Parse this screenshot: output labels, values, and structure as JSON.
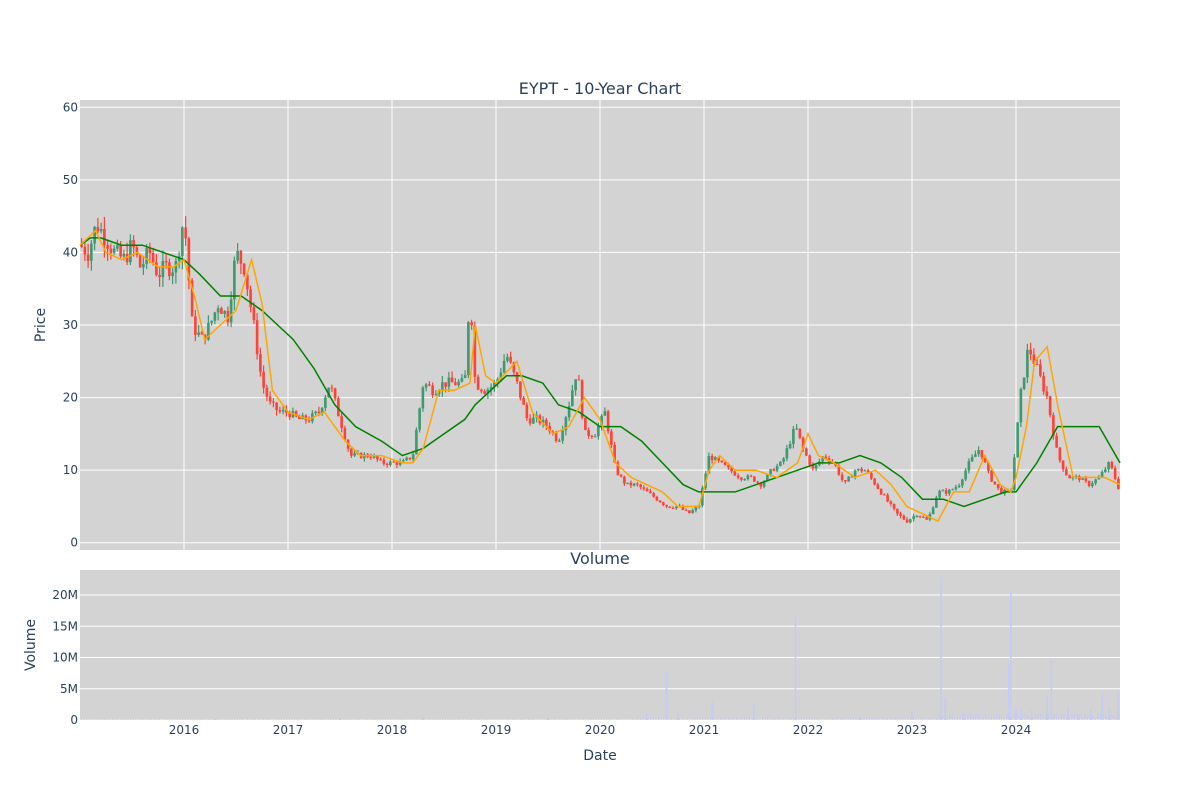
{
  "chart_data": [
    {
      "type": "candlestick",
      "title": "EYPT - 10-Year Chart",
      "ylabel": "Price",
      "xlabel": "",
      "x_range": [
        2015.0,
        2025.0
      ],
      "ylim": [
        -1,
        61
      ],
      "y_ticks": [
        0,
        10,
        20,
        30,
        40,
        50,
        60
      ],
      "grid": true,
      "colors": {
        "plot_bg": "#d3d3d3",
        "increasing": "#3d9970",
        "decreasing": "#ff4136",
        "ma_fast": "#ffa500",
        "ma_slow": "#008000"
      },
      "series": [
        {
          "kind": "close",
          "x": [
            2015.0,
            2015.08,
            2015.16,
            2015.25,
            2015.33,
            2015.42,
            2015.5,
            2015.58,
            2015.67,
            2015.75,
            2015.83,
            2015.92,
            2016.0,
            2016.08,
            2016.17,
            2016.25,
            2016.33,
            2016.42,
            2016.5,
            2016.58,
            2016.67,
            2016.75,
            2016.83,
            2016.92,
            2017.0,
            2017.1,
            2017.2,
            2017.3,
            2017.4,
            2017.5,
            2017.6,
            2017.7,
            2017.8,
            2017.9,
            2018.0,
            2018.1,
            2018.2,
            2018.3,
            2018.4,
            2018.5,
            2018.6,
            2018.7,
            2018.75,
            2018.8,
            2018.9,
            2019.0,
            2019.1,
            2019.2,
            2019.3,
            2019.4,
            2019.5,
            2019.6,
            2019.7,
            2019.78,
            2019.85,
            2019.95,
            2020.05,
            2020.15,
            2020.25,
            2020.35,
            2020.45,
            2020.55,
            2020.65,
            2020.75,
            2020.85,
            2020.95,
            2021.05,
            2021.15,
            2021.25,
            2021.35,
            2021.45,
            2021.55,
            2021.65,
            2021.75,
            2021.88,
            2021.95,
            2022.05,
            2022.15,
            2022.25,
            2022.35,
            2022.45,
            2022.55,
            2022.65,
            2022.75,
            2022.85,
            2022.95,
            2023.05,
            2023.15,
            2023.25,
            2023.35,
            2023.45,
            2023.55,
            2023.65,
            2023.75,
            2023.85,
            2023.95,
            2024.05,
            2024.12,
            2024.2,
            2024.3,
            2024.4,
            2024.5,
            2024.6,
            2024.7,
            2024.8,
            2024.9,
            2025.0
          ],
          "values": [
            41,
            40,
            44,
            42,
            40,
            39,
            41,
            38,
            40,
            37,
            38,
            38,
            45,
            30,
            28,
            30,
            33,
            31,
            40,
            38,
            30,
            22,
            19,
            18,
            18,
            17,
            17,
            18,
            22,
            17,
            12,
            12,
            12,
            11,
            11,
            11,
            12,
            22,
            21,
            22,
            22,
            22,
            35,
            22,
            21,
            22,
            26,
            22,
            17,
            17,
            16,
            14,
            19,
            24,
            15,
            15,
            18,
            10,
            8,
            8,
            7,
            6,
            5,
            5,
            4,
            5,
            12,
            11,
            10,
            9,
            9,
            8,
            10,
            11,
            16,
            13,
            10,
            12,
            11,
            8,
            10,
            10,
            8,
            6,
            4,
            3,
            4,
            3,
            7,
            7,
            8,
            11,
            13,
            9,
            7,
            7,
            21,
            27,
            24,
            20,
            12,
            9,
            9,
            8,
            9,
            11,
            7
          ]
        },
        {
          "kind": "ma_fast",
          "x": [
            2015.0,
            2015.15,
            2015.25,
            2015.4,
            2015.55,
            2015.75,
            2015.9,
            2016.0,
            2016.1,
            2016.2,
            2016.35,
            2016.5,
            2016.65,
            2016.75,
            2016.85,
            2017.0,
            2017.2,
            2017.35,
            2017.55,
            2017.7,
            2017.9,
            2018.1,
            2018.2,
            2018.3,
            2018.45,
            2018.6,
            2018.75,
            2018.8,
            2018.9,
            2019.0,
            2019.2,
            2019.35,
            2019.55,
            2019.7,
            2019.85,
            2020.0,
            2020.15,
            2020.3,
            2020.45,
            2020.6,
            2020.75,
            2020.95,
            2021.05,
            2021.15,
            2021.3,
            2021.5,
            2021.7,
            2021.9,
            2022.0,
            2022.1,
            2022.25,
            2022.45,
            2022.65,
            2022.8,
            2022.95,
            2023.1,
            2023.25,
            2023.4,
            2023.55,
            2023.7,
            2023.85,
            2023.95,
            2024.0,
            2024.1,
            2024.18,
            2024.3,
            2024.4,
            2024.55,
            2024.7,
            2024.85,
            2025.0
          ],
          "values": [
            41,
            43,
            40,
            39,
            40,
            38,
            38,
            39,
            34,
            28,
            30,
            32,
            39,
            33,
            21,
            18,
            17,
            18,
            14,
            12,
            12,
            11,
            11,
            13,
            21,
            21,
            22,
            30,
            23,
            22,
            25,
            18,
            15,
            16,
            20,
            17,
            11,
            9,
            8,
            7,
            5,
            5,
            10,
            12,
            10,
            10,
            9,
            11,
            15,
            12,
            11,
            9,
            10,
            8,
            5,
            4,
            3,
            7,
            7,
            12,
            8,
            7,
            9,
            16,
            25,
            27,
            19,
            9,
            9,
            9,
            8
          ]
        },
        {
          "kind": "ma_slow",
          "x": [
            2015.0,
            2015.1,
            2015.2,
            2015.4,
            2015.6,
            2015.8,
            2016.0,
            2016.15,
            2016.35,
            2016.55,
            2016.75,
            2016.9,
            2017.05,
            2017.25,
            2017.45,
            2017.65,
            2017.9,
            2018.1,
            2018.3,
            2018.5,
            2018.7,
            2018.8,
            2018.95,
            2019.1,
            2019.25,
            2019.45,
            2019.6,
            2019.8,
            2020.0,
            2020.2,
            2020.4,
            2020.6,
            2020.8,
            2020.95,
            2021.1,
            2021.3,
            2021.5,
            2021.7,
            2021.9,
            2022.1,
            2022.3,
            2022.5,
            2022.7,
            2022.9,
            2023.1,
            2023.3,
            2023.5,
            2023.7,
            2023.9,
            2024.0,
            2024.2,
            2024.4,
            2024.6,
            2024.8,
            2025.0
          ],
          "values": [
            41,
            42,
            42,
            41,
            41,
            40,
            39,
            37,
            34,
            34,
            32,
            30,
            28,
            24,
            19,
            16,
            14,
            12,
            13,
            15,
            17,
            19,
            21,
            23,
            23,
            22,
            19,
            18,
            16,
            16,
            14,
            11,
            8,
            7,
            7,
            7,
            8,
            9,
            10,
            11,
            11,
            12,
            11,
            9,
            6,
            6,
            5,
            6,
            7,
            7,
            11,
            16,
            16,
            16,
            11
          ]
        }
      ]
    },
    {
      "type": "bar",
      "title": "Volume",
      "ylabel": "Volume",
      "xlabel": "Date",
      "x_range": [
        2015.0,
        2025.0
      ],
      "ylim": [
        0,
        24000000
      ],
      "y_ticks": [
        0,
        5000000,
        10000000,
        15000000,
        20000000
      ],
      "y_tick_labels": [
        "0",
        "5M",
        "10M",
        "15M",
        "20M"
      ],
      "x_ticks": [
        2016,
        2017,
        2018,
        2019,
        2020,
        2021,
        2022,
        2023,
        2024
      ],
      "x_tick_labels": [
        "2016",
        "2017",
        "2018",
        "2019",
        "2020",
        "2021",
        "2022",
        "2023",
        "2024"
      ],
      "grid": true,
      "colors": {
        "plot_bg": "#d3d3d3",
        "bar": "#c6cbef"
      },
      "x": [
        2016.3,
        2017.5,
        2018.3,
        2019.5,
        2020.45,
        2020.64,
        2020.75,
        2021.08,
        2021.48,
        2021.88,
        2022.5,
        2023.0,
        2023.28,
        2023.32,
        2023.5,
        2023.93,
        2023.95,
        2024.0,
        2024.05,
        2024.15,
        2024.3,
        2024.34,
        2024.5,
        2024.6,
        2024.72,
        2024.83,
        2024.9,
        2024.98
      ],
      "values": [
        200000,
        300000,
        500000,
        400000,
        1000000,
        7800000,
        1200000,
        3000000,
        2500000,
        16500000,
        700000,
        1500000,
        22800000,
        3500000,
        1200000,
        9000000,
        20500000,
        2000000,
        1800000,
        1600000,
        3800000,
        9800000,
        2200000,
        1000000,
        1800000,
        4300000,
        2000000,
        4500000
      ]
    }
  ]
}
